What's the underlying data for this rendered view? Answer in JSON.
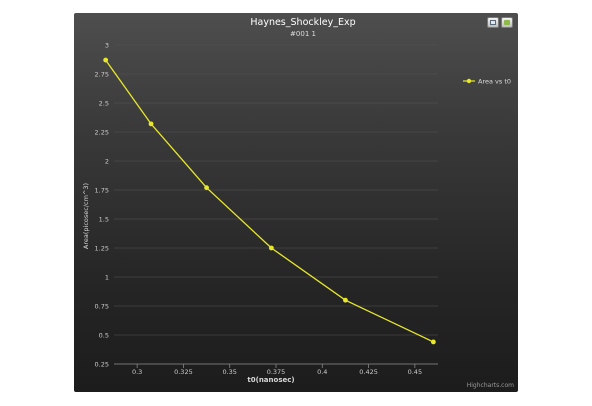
{
  "chart_data": {
    "type": "line",
    "title": "Haynes_Shockley_Exp",
    "subtitle": "#001 1",
    "xlabel": "t0(nanosec)",
    "ylabel": "Area(picosec/cm^3)",
    "xlim": [
      0.2875,
      0.4625
    ],
    "ylim": [
      0.25,
      3
    ],
    "xticks": [
      "0.3",
      "0.325",
      "0.35",
      "0.375",
      "0.4",
      "0.425",
      "0.45"
    ],
    "yticks": [
      "0.25",
      "0.5",
      "0.75",
      "1",
      "1.25",
      "1.5",
      "1.75",
      "2",
      "2.25",
      "2.5",
      "2.75",
      "3"
    ],
    "grid": true,
    "legend_position": "top-right",
    "series": [
      {
        "name": "Area vs t0",
        "color": "#e8e82a",
        "x": [
          0.283,
          0.3075,
          0.3375,
          0.3725,
          0.4125,
          0.46
        ],
        "y": [
          2.87,
          2.32,
          1.77,
          1.25,
          0.8,
          0.44
        ]
      }
    ]
  },
  "credits": "Highcharts.com",
  "icons": {
    "print": "print-icon",
    "export": "export-icon"
  }
}
